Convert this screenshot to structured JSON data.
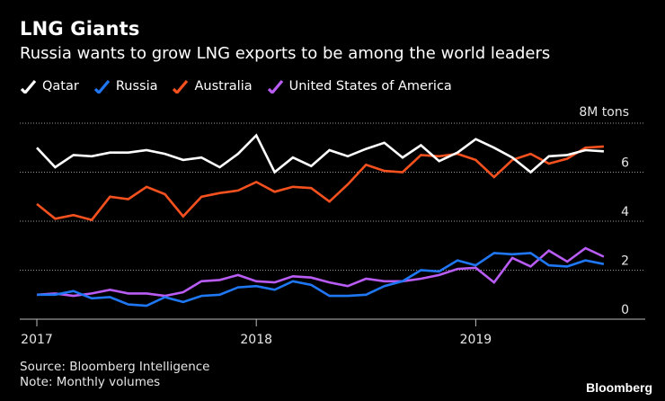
{
  "chart_data": {
    "type": "line",
    "title": "LNG Giants",
    "subtitle": "Russia wants to grow LNG exports to be among the world leaders",
    "unit_label": "8M tons",
    "xlabel": "",
    "ylabel": "",
    "ylim": [
      0,
      8
    ],
    "y_ticks": [
      0,
      2,
      4,
      6
    ],
    "x_ticks": [
      "2017",
      "2018",
      "2019"
    ],
    "x": [
      "2017-01",
      "2017-02",
      "2017-03",
      "2017-04",
      "2017-05",
      "2017-06",
      "2017-07",
      "2017-08",
      "2017-09",
      "2017-10",
      "2017-11",
      "2017-12",
      "2018-01",
      "2018-02",
      "2018-03",
      "2018-04",
      "2018-05",
      "2018-06",
      "2018-07",
      "2018-08",
      "2018-09",
      "2018-10",
      "2018-11",
      "2018-12",
      "2019-01",
      "2019-02",
      "2019-03",
      "2019-04",
      "2019-05",
      "2019-06",
      "2019-07",
      "2019-08"
    ],
    "series": [
      {
        "name": "Qatar",
        "color": "#ffffff",
        "values": [
          7.0,
          6.2,
          6.7,
          6.65,
          6.8,
          6.8,
          6.9,
          6.75,
          6.5,
          6.6,
          6.2,
          6.75,
          7.5,
          6.0,
          6.6,
          6.25,
          6.9,
          6.65,
          6.95,
          7.2,
          6.6,
          7.1,
          6.45,
          6.8,
          7.35,
          7.0,
          6.6,
          6.0,
          6.65,
          6.7,
          6.9,
          6.85
        ]
      },
      {
        "name": "Russia",
        "color": "#1f77f4",
        "values": [
          1.0,
          1.0,
          1.15,
          0.85,
          0.9,
          0.6,
          0.55,
          0.9,
          0.7,
          0.95,
          1.0,
          1.3,
          1.35,
          1.2,
          1.55,
          1.4,
          0.95,
          0.95,
          1.0,
          1.35,
          1.55,
          2.0,
          1.95,
          2.4,
          2.2,
          2.7,
          2.65,
          2.7,
          2.2,
          2.15,
          2.4,
          2.25
        ]
      },
      {
        "name": "Australia",
        "color": "#f4511e",
        "values": [
          4.7,
          4.1,
          4.25,
          4.05,
          5.0,
          4.9,
          5.4,
          5.1,
          4.2,
          5.0,
          5.15,
          5.25,
          5.6,
          5.2,
          5.4,
          5.35,
          4.8,
          5.5,
          6.3,
          6.05,
          6.0,
          6.7,
          6.65,
          6.75,
          6.5,
          5.8,
          6.5,
          6.75,
          6.35,
          6.55,
          7.0,
          7.05
        ]
      },
      {
        "name": "United States of America",
        "color": "#b95cf4",
        "values": [
          1.0,
          1.05,
          0.95,
          1.05,
          1.2,
          1.05,
          1.05,
          0.95,
          1.1,
          1.55,
          1.6,
          1.8,
          1.55,
          1.5,
          1.75,
          1.7,
          1.5,
          1.35,
          1.65,
          1.55,
          1.55,
          1.65,
          1.8,
          2.05,
          2.1,
          1.5,
          2.5,
          2.15,
          2.8,
          2.35,
          2.9,
          2.55
        ]
      }
    ]
  },
  "footer": {
    "source": "Source: Bloomberg Intelligence",
    "note": "Note: Monthly volumes"
  },
  "brand": "Bloomberg"
}
